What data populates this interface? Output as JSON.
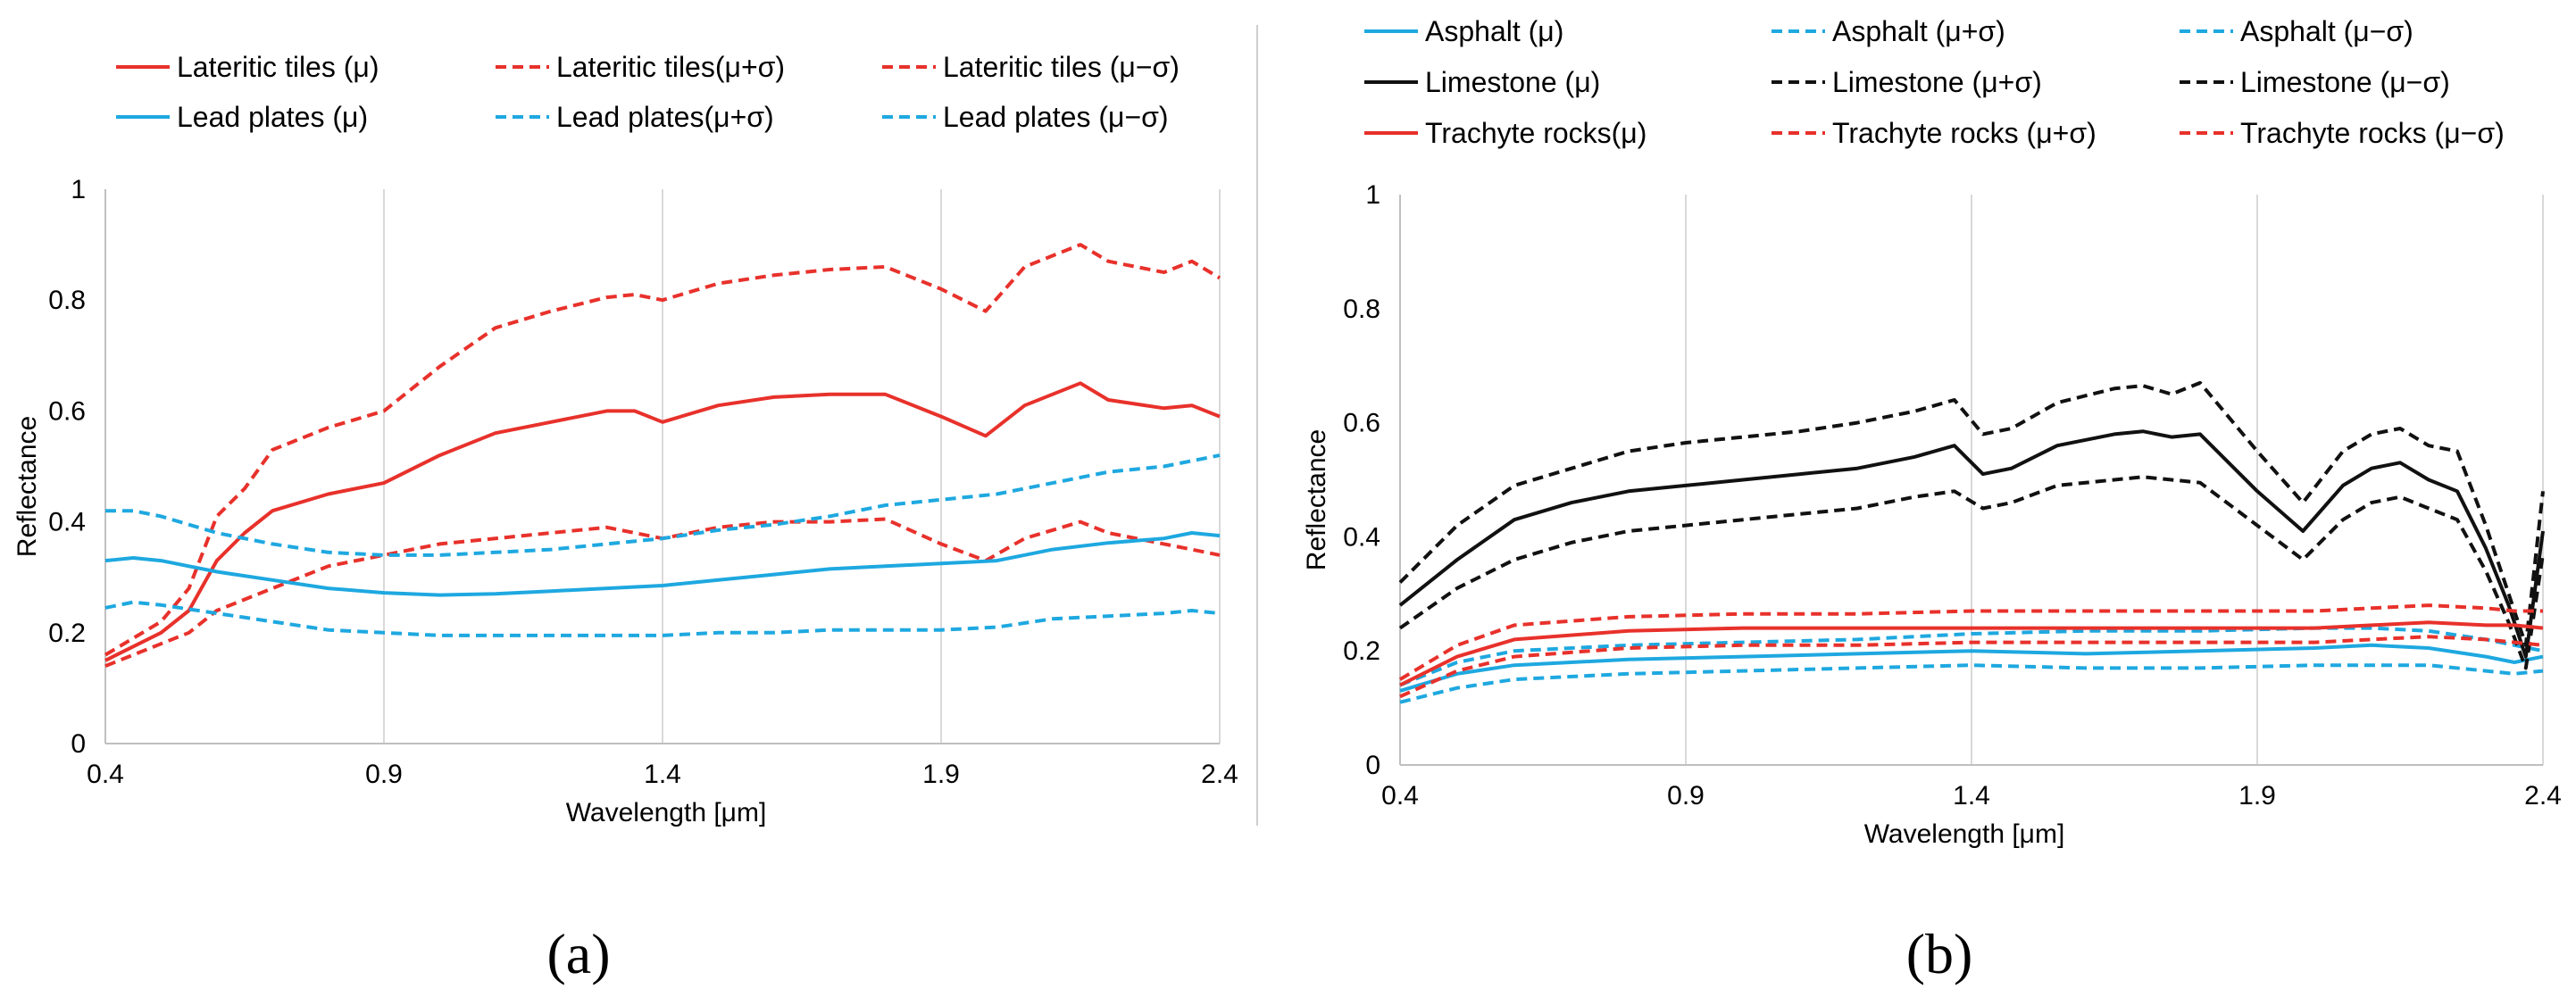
{
  "colors": {
    "red": "#E8312B",
    "blue": "#1EA8E0",
    "black": "#111111",
    "grid": "#D9D9D9",
    "divider": "#CFCFCF"
  },
  "chart_data": [
    {
      "type": "line",
      "panel_label": "(a)",
      "xlabel": "Wavelength [μm]",
      "ylabel": "Reflectance",
      "xlim": [
        0.4,
        2.4
      ],
      "ylim": [
        0,
        1
      ],
      "xticks": [
        0.4,
        0.9,
        1.4,
        1.9,
        2.4
      ],
      "xtick_labels": [
        "0.4",
        "0.9",
        "1.4",
        "1.9",
        "2.4"
      ],
      "yticks": [
        0,
        0.2,
        0.4,
        0.6,
        0.8,
        1
      ],
      "ytick_labels": [
        "0",
        "0.2",
        "0.4",
        "0.6",
        "0.8",
        "1"
      ],
      "gridlines": "vertical",
      "legend_position": "top",
      "series": [
        {
          "name": "Lateritic tiles (μ)",
          "color": "red",
          "dash": false,
          "x": [
            0.4,
            0.5,
            0.55,
            0.6,
            0.65,
            0.7,
            0.8,
            0.9,
            1.0,
            1.1,
            1.2,
            1.3,
            1.35,
            1.4,
            1.5,
            1.6,
            1.7,
            1.8,
            1.9,
            1.98,
            2.05,
            2.15,
            2.2,
            2.3,
            2.35,
            2.4
          ],
          "y": [
            0.15,
            0.2,
            0.24,
            0.33,
            0.38,
            0.42,
            0.45,
            0.47,
            0.52,
            0.56,
            0.58,
            0.6,
            0.6,
            0.58,
            0.61,
            0.625,
            0.63,
            0.63,
            0.59,
            0.555,
            0.61,
            0.65,
            0.62,
            0.605,
            0.61,
            0.59
          ]
        },
        {
          "name": "Lateritic tiles(μ+σ)",
          "color": "red",
          "dash": true,
          "x": [
            0.4,
            0.5,
            0.55,
            0.6,
            0.65,
            0.7,
            0.8,
            0.9,
            1.0,
            1.1,
            1.2,
            1.3,
            1.35,
            1.4,
            1.5,
            1.6,
            1.7,
            1.8,
            1.9,
            1.98,
            2.05,
            2.15,
            2.2,
            2.3,
            2.35,
            2.4
          ],
          "y": [
            0.16,
            0.22,
            0.28,
            0.41,
            0.46,
            0.53,
            0.57,
            0.6,
            0.68,
            0.75,
            0.78,
            0.805,
            0.81,
            0.8,
            0.83,
            0.845,
            0.855,
            0.86,
            0.82,
            0.78,
            0.86,
            0.9,
            0.87,
            0.85,
            0.87,
            0.84
          ]
        },
        {
          "name": "Lateritic tiles (μ−σ)",
          "color": "red",
          "dash": true,
          "x": [
            0.4,
            0.5,
            0.55,
            0.6,
            0.7,
            0.8,
            0.9,
            1.0,
            1.1,
            1.2,
            1.3,
            1.4,
            1.5,
            1.6,
            1.7,
            1.8,
            1.9,
            1.98,
            2.05,
            2.15,
            2.2,
            2.3,
            2.35,
            2.4
          ],
          "y": [
            0.14,
            0.18,
            0.2,
            0.24,
            0.28,
            0.32,
            0.34,
            0.36,
            0.37,
            0.38,
            0.39,
            0.37,
            0.39,
            0.4,
            0.4,
            0.405,
            0.36,
            0.33,
            0.37,
            0.4,
            0.38,
            0.36,
            0.35,
            0.34
          ]
        },
        {
          "name": "Lead plates (μ)",
          "color": "blue",
          "dash": false,
          "x": [
            0.4,
            0.45,
            0.5,
            0.6,
            0.7,
            0.8,
            0.9,
            1.0,
            1.1,
            1.2,
            1.3,
            1.4,
            1.5,
            1.6,
            1.7,
            1.8,
            1.9,
            2.0,
            2.1,
            2.2,
            2.3,
            2.35,
            2.4
          ],
          "y": [
            0.33,
            0.335,
            0.33,
            0.31,
            0.295,
            0.28,
            0.272,
            0.268,
            0.27,
            0.275,
            0.28,
            0.285,
            0.295,
            0.305,
            0.315,
            0.32,
            0.325,
            0.33,
            0.35,
            0.362,
            0.37,
            0.38,
            0.375
          ]
        },
        {
          "name": "Lead plates(μ+σ)",
          "color": "blue",
          "dash": true,
          "x": [
            0.4,
            0.45,
            0.5,
            0.6,
            0.7,
            0.8,
            0.9,
            1.0,
            1.1,
            1.2,
            1.3,
            1.4,
            1.5,
            1.6,
            1.7,
            1.8,
            1.9,
            2.0,
            2.1,
            2.2,
            2.3,
            2.35,
            2.4
          ],
          "y": [
            0.42,
            0.42,
            0.41,
            0.38,
            0.36,
            0.345,
            0.34,
            0.34,
            0.345,
            0.35,
            0.36,
            0.37,
            0.385,
            0.395,
            0.41,
            0.43,
            0.44,
            0.45,
            0.47,
            0.49,
            0.5,
            0.51,
            0.52
          ]
        },
        {
          "name": "Lead plates (μ−σ)",
          "color": "blue",
          "dash": true,
          "x": [
            0.4,
            0.45,
            0.5,
            0.6,
            0.7,
            0.8,
            0.9,
            1.0,
            1.1,
            1.2,
            1.3,
            1.4,
            1.5,
            1.6,
            1.7,
            1.8,
            1.9,
            2.0,
            2.1,
            2.2,
            2.3,
            2.35,
            2.4
          ],
          "y": [
            0.245,
            0.255,
            0.25,
            0.235,
            0.22,
            0.205,
            0.2,
            0.195,
            0.195,
            0.195,
            0.195,
            0.195,
            0.2,
            0.2,
            0.205,
            0.205,
            0.205,
            0.21,
            0.225,
            0.23,
            0.235,
            0.24,
            0.235
          ]
        }
      ]
    },
    {
      "type": "line",
      "panel_label": "(b)",
      "xlabel": "Wavelength [μm]",
      "ylabel": "Reflectance",
      "xlim": [
        0.4,
        2.4
      ],
      "ylim": [
        0,
        1
      ],
      "xticks": [
        0.4,
        0.9,
        1.4,
        1.9,
        2.4
      ],
      "xtick_labels": [
        "0.4",
        "0.9",
        "1.4",
        "1.9",
        "2.4"
      ],
      "yticks": [
        0,
        0.2,
        0.4,
        0.6,
        0.8,
        1
      ],
      "ytick_labels": [
        "0",
        "0.2",
        "0.4",
        "0.6",
        "0.8",
        "1"
      ],
      "gridlines": "vertical",
      "legend_position": "top",
      "series": [
        {
          "name": "Asphalt (μ)",
          "color": "blue",
          "dash": false,
          "x": [
            0.4,
            0.5,
            0.6,
            0.8,
            1.0,
            1.2,
            1.4,
            1.6,
            1.8,
            2.0,
            2.1,
            2.2,
            2.3,
            2.35,
            2.4
          ],
          "y": [
            0.13,
            0.16,
            0.175,
            0.185,
            0.19,
            0.195,
            0.2,
            0.195,
            0.2,
            0.205,
            0.21,
            0.205,
            0.19,
            0.18,
            0.19
          ]
        },
        {
          "name": "Asphalt  (μ+σ)",
          "color": "blue",
          "dash": true,
          "x": [
            0.4,
            0.5,
            0.6,
            0.8,
            1.0,
            1.2,
            1.4,
            1.6,
            1.8,
            2.0,
            2.1,
            2.2,
            2.3,
            2.35,
            2.4
          ],
          "y": [
            0.14,
            0.18,
            0.2,
            0.21,
            0.215,
            0.22,
            0.23,
            0.235,
            0.235,
            0.24,
            0.24,
            0.235,
            0.22,
            0.21,
            0.2
          ]
        },
        {
          "name": "Asphalt  (μ−σ)",
          "color": "blue",
          "dash": true,
          "x": [
            0.4,
            0.5,
            0.6,
            0.8,
            1.0,
            1.2,
            1.4,
            1.6,
            1.8,
            2.0,
            2.1,
            2.2,
            2.3,
            2.35,
            2.4
          ],
          "y": [
            0.11,
            0.135,
            0.15,
            0.16,
            0.165,
            0.17,
            0.175,
            0.17,
            0.17,
            0.175,
            0.175,
            0.175,
            0.165,
            0.16,
            0.165
          ]
        },
        {
          "name": "Limestone (μ)",
          "color": "black",
          "dash": false,
          "x": [
            0.4,
            0.5,
            0.6,
            0.7,
            0.8,
            0.9,
            1.0,
            1.1,
            1.2,
            1.3,
            1.37,
            1.42,
            1.47,
            1.55,
            1.65,
            1.7,
            1.75,
            1.8,
            1.9,
            1.98,
            2.05,
            2.1,
            2.15,
            2.2,
            2.25,
            2.3,
            2.34,
            2.37,
            2.4
          ],
          "y": [
            0.28,
            0.36,
            0.43,
            0.46,
            0.48,
            0.49,
            0.5,
            0.51,
            0.52,
            0.54,
            0.56,
            0.51,
            0.52,
            0.56,
            0.58,
            0.585,
            0.575,
            0.58,
            0.48,
            0.41,
            0.49,
            0.52,
            0.53,
            0.5,
            0.48,
            0.38,
            0.28,
            0.19,
            0.41
          ]
        },
        {
          "name": "Limestone (μ+σ)",
          "color": "black",
          "dash": true,
          "x": [
            0.4,
            0.5,
            0.6,
            0.7,
            0.8,
            0.9,
            1.0,
            1.1,
            1.2,
            1.3,
            1.37,
            1.42,
            1.47,
            1.55,
            1.65,
            1.7,
            1.75,
            1.8,
            1.9,
            1.98,
            2.05,
            2.1,
            2.15,
            2.2,
            2.25,
            2.3,
            2.34,
            2.37,
            2.4
          ],
          "y": [
            0.32,
            0.42,
            0.49,
            0.52,
            0.55,
            0.565,
            0.575,
            0.585,
            0.6,
            0.62,
            0.64,
            0.58,
            0.59,
            0.635,
            0.66,
            0.665,
            0.65,
            0.67,
            0.55,
            0.46,
            0.55,
            0.58,
            0.59,
            0.56,
            0.55,
            0.42,
            0.3,
            0.21,
            0.48
          ]
        },
        {
          "name": "Limestone (μ−σ)",
          "color": "black",
          "dash": true,
          "x": [
            0.4,
            0.5,
            0.6,
            0.7,
            0.8,
            0.9,
            1.0,
            1.1,
            1.2,
            1.3,
            1.37,
            1.42,
            1.47,
            1.55,
            1.65,
            1.7,
            1.75,
            1.8,
            1.9,
            1.98,
            2.05,
            2.1,
            2.15,
            2.2,
            2.25,
            2.3,
            2.34,
            2.37,
            2.4
          ],
          "y": [
            0.24,
            0.31,
            0.36,
            0.39,
            0.41,
            0.42,
            0.43,
            0.44,
            0.45,
            0.47,
            0.48,
            0.45,
            0.46,
            0.49,
            0.5,
            0.505,
            0.5,
            0.495,
            0.42,
            0.36,
            0.43,
            0.46,
            0.47,
            0.45,
            0.43,
            0.34,
            0.25,
            0.17,
            0.37
          ]
        },
        {
          "name": "Trachyte rocks(μ)",
          "color": "red",
          "dash": false,
          "x": [
            0.4,
            0.5,
            0.6,
            0.8,
            1.0,
            1.2,
            1.4,
            1.6,
            1.8,
            2.0,
            2.1,
            2.2,
            2.3,
            2.35,
            2.4
          ],
          "y": [
            0.14,
            0.19,
            0.22,
            0.235,
            0.24,
            0.24,
            0.24,
            0.24,
            0.24,
            0.24,
            0.245,
            0.25,
            0.245,
            0.245,
            0.24
          ]
        },
        {
          "name": "Trachyte rocks (μ+σ)",
          "color": "red",
          "dash": true,
          "x": [
            0.4,
            0.5,
            0.6,
            0.8,
            1.0,
            1.2,
            1.4,
            1.6,
            1.8,
            2.0,
            2.1,
            2.2,
            2.3,
            2.35,
            2.4
          ],
          "y": [
            0.15,
            0.21,
            0.245,
            0.26,
            0.265,
            0.265,
            0.27,
            0.27,
            0.27,
            0.27,
            0.275,
            0.28,
            0.275,
            0.27,
            0.27
          ]
        },
        {
          "name": "Trachyte rocks (μ−σ)",
          "color": "red",
          "dash": true,
          "x": [
            0.4,
            0.5,
            0.6,
            0.8,
            1.0,
            1.2,
            1.4,
            1.6,
            1.8,
            2.0,
            2.1,
            2.2,
            2.3,
            2.35,
            2.4
          ],
          "y": [
            0.12,
            0.165,
            0.19,
            0.205,
            0.21,
            0.21,
            0.215,
            0.215,
            0.215,
            0.215,
            0.22,
            0.225,
            0.22,
            0.215,
            0.21
          ]
        }
      ]
    }
  ]
}
